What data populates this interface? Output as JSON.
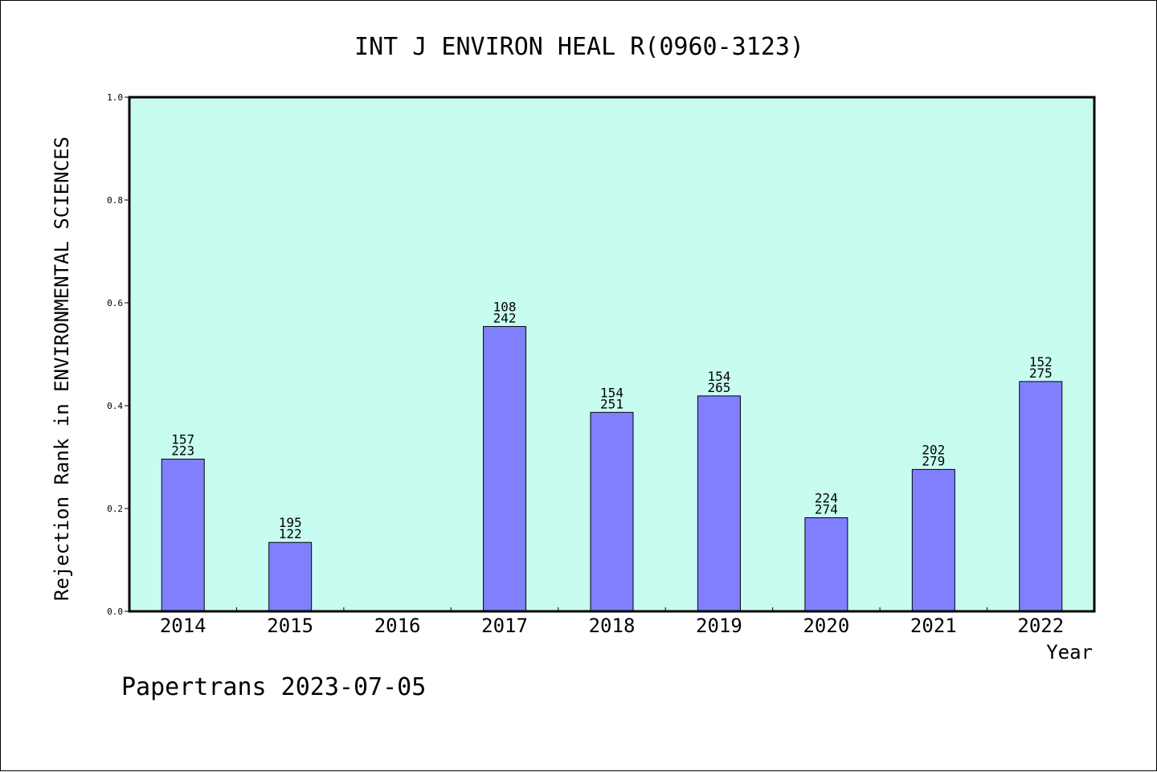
{
  "chart_data": {
    "type": "bar",
    "title": "INT J ENVIRON HEAL R(0960-3123)",
    "xlabel": "Year",
    "ylabel": "Rejection Rank in ENVIRONMENTAL SCIENCES",
    "ylim": [
      0,
      1.0
    ],
    "yticks": [
      "0.0",
      "0.2",
      "0.4",
      "0.6",
      "0.8",
      "1.0"
    ],
    "categories": [
      "2014",
      "2015",
      "2016",
      "2017",
      "2018",
      "2019",
      "2020",
      "2021",
      "2022"
    ],
    "values": [
      0.296,
      0.134,
      null,
      0.554,
      0.387,
      0.419,
      0.182,
      0.276,
      0.447
    ],
    "label_top": [
      "157",
      "195",
      "",
      "108",
      "154",
      "154",
      "224",
      "202",
      "152"
    ],
    "label_bottom": [
      "223",
      "122",
      "",
      "242",
      "251",
      "265",
      "274",
      "279",
      "275"
    ],
    "bar_color": "#8080ff",
    "plot_background": "#c8fcf0",
    "grid": false,
    "legend": "none"
  },
  "footer": {
    "watermark": "Papertrans 2023-07-05"
  }
}
